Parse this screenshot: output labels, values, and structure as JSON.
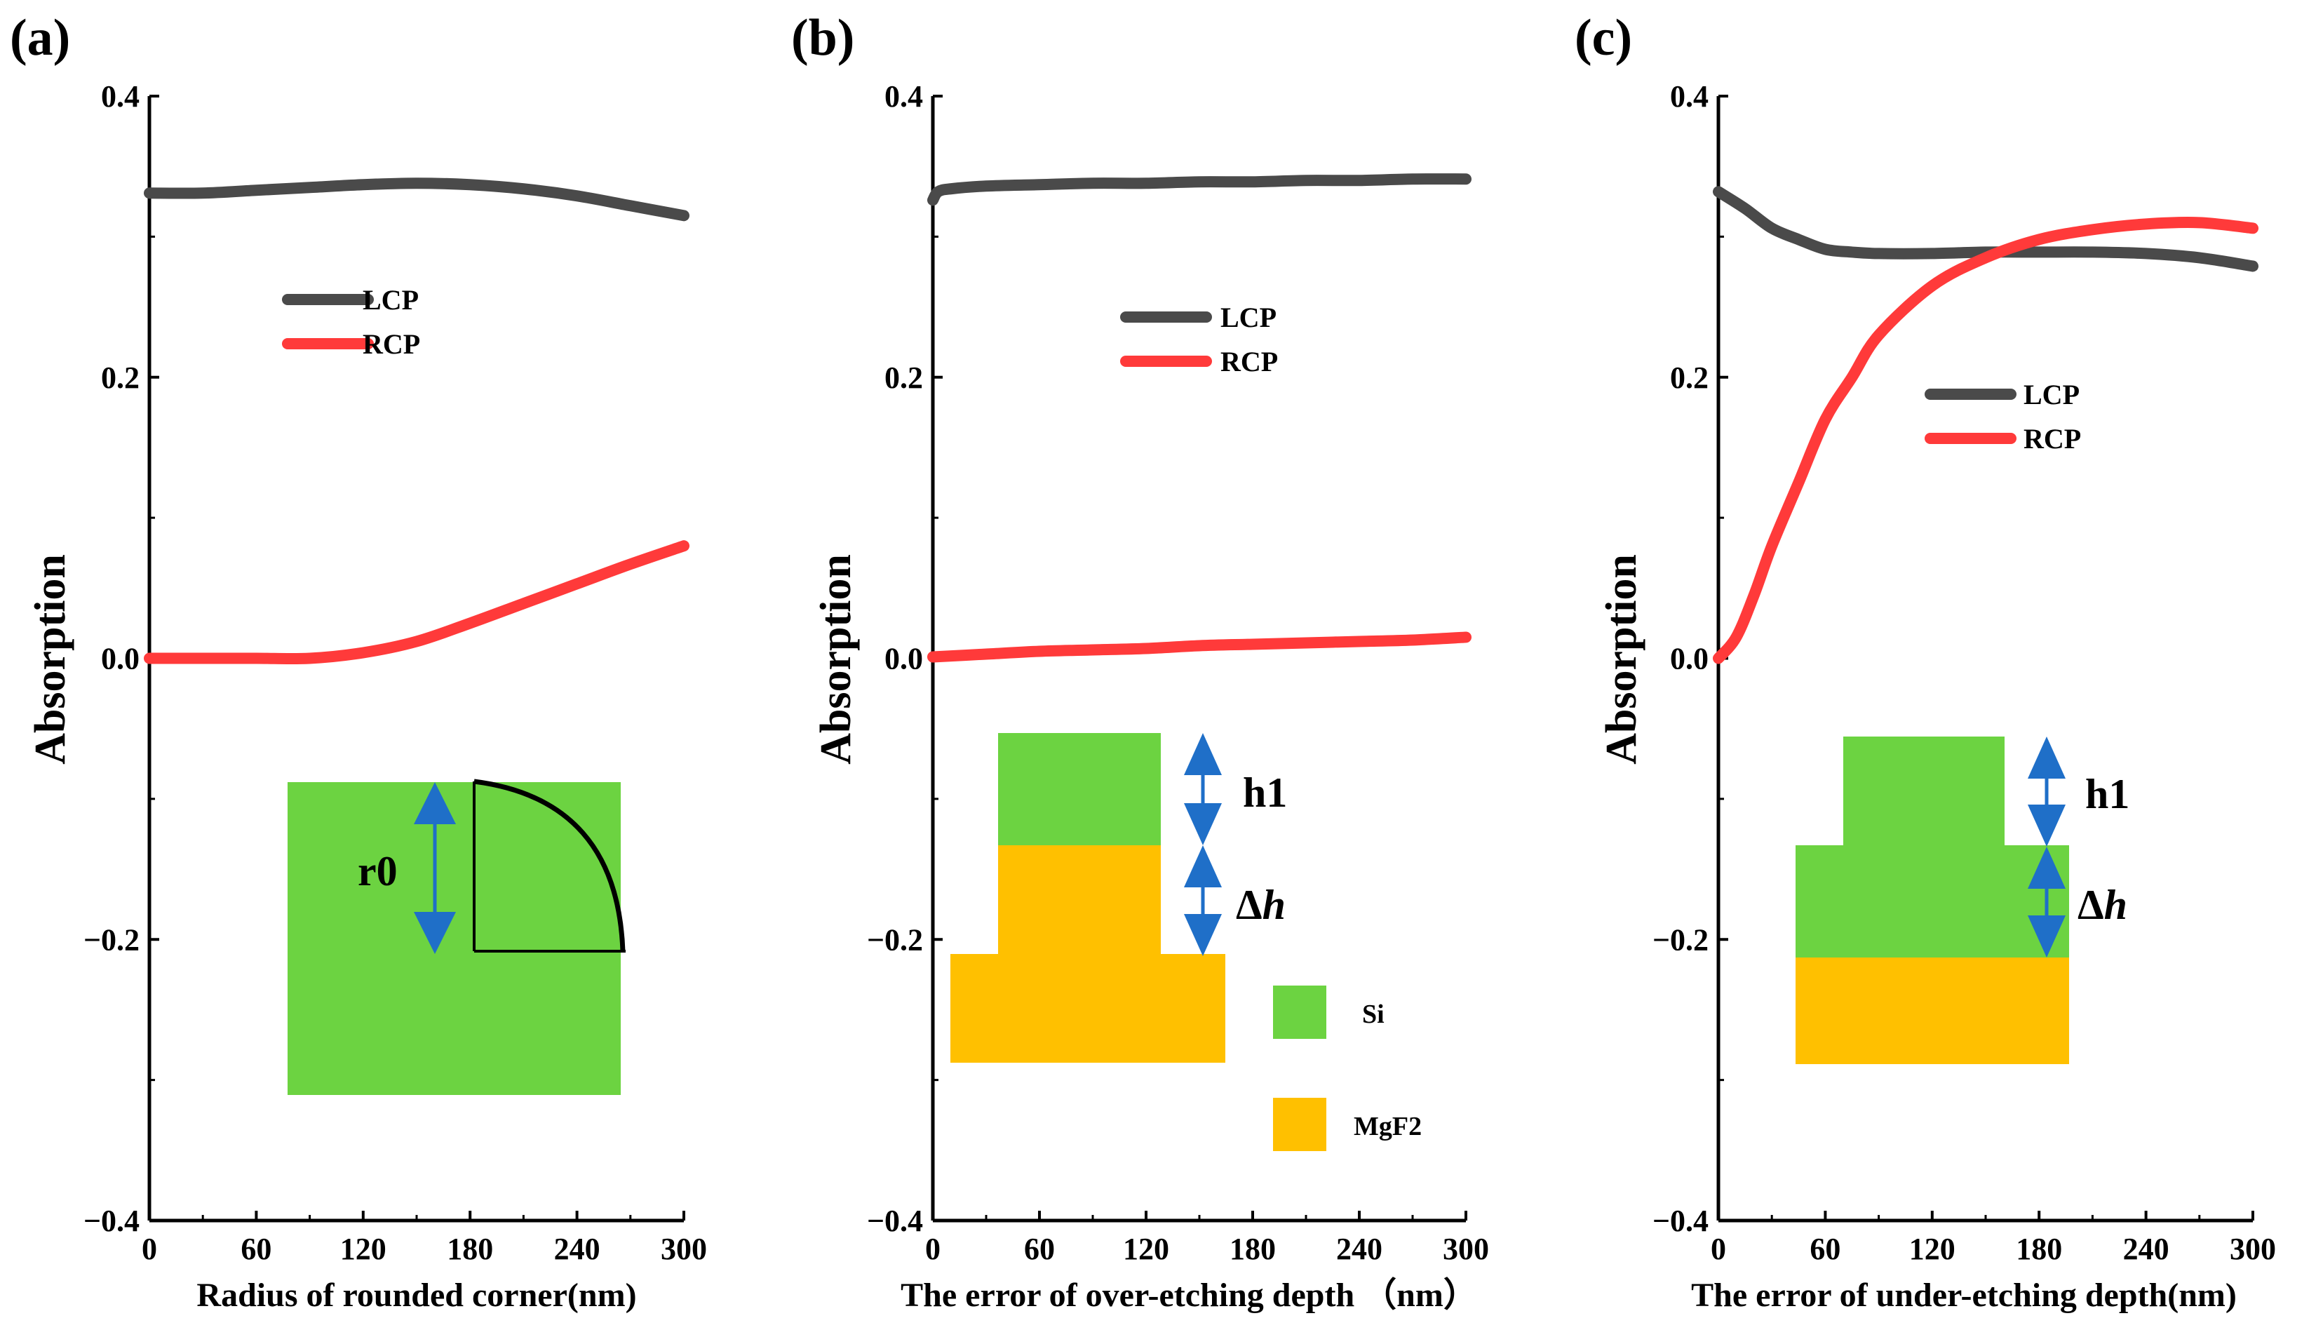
{
  "colors": {
    "lcp": "#4a4a4a",
    "rcp": "#ff3a3a",
    "si": "#6cd341",
    "mgf2": "#ffc000",
    "arrow": "#1f6fc8"
  },
  "chart_data": [
    {
      "type": "line",
      "panel_label": "(a)",
      "xlabel": "Radius of rounded corner(nm)",
      "ylabel": "Absorption",
      "xlim": [
        0,
        300
      ],
      "ylim": [
        -0.4,
        0.4
      ],
      "xticks": [
        "0",
        "60",
        "120",
        "180",
        "240",
        "300"
      ],
      "yticks": [
        "0.4",
        "0.2",
        "0.0",
        "−0.2",
        "−0.4"
      ],
      "legend": {
        "position": "upper-left",
        "labels": [
          "LCP",
          "RCP"
        ]
      },
      "series": [
        {
          "name": "LCP",
          "x": [
            0,
            30,
            60,
            90,
            120,
            150,
            180,
            210,
            240,
            270,
            300
          ],
          "y": [
            0.331,
            0.331,
            0.333,
            0.335,
            0.337,
            0.338,
            0.337,
            0.334,
            0.329,
            0.322,
            0.315
          ]
        },
        {
          "name": "RCP",
          "x": [
            0,
            30,
            60,
            90,
            120,
            150,
            180,
            210,
            240,
            270,
            300
          ],
          "y": [
            0.0,
            0.0,
            0.0,
            0.0,
            0.004,
            0.012,
            0.025,
            0.039,
            0.053,
            0.067,
            0.08
          ]
        }
      ],
      "inset": {
        "labels": [
          "r0"
        ]
      }
    },
    {
      "type": "line",
      "panel_label": "(b)",
      "xlabel": "The error of over-etching depth （nm）",
      "ylabel": "Absorption",
      "xlim": [
        0,
        300
      ],
      "ylim": [
        -0.4,
        0.4
      ],
      "xticks": [
        "0",
        "60",
        "120",
        "180",
        "240",
        "300"
      ],
      "yticks": [
        "0.4",
        "0.2",
        "0.0",
        "−0.2",
        "−0.4"
      ],
      "legend": {
        "position": "upper-center",
        "labels": [
          "LCP",
          "RCP"
        ]
      },
      "series": [
        {
          "name": "LCP",
          "x": [
            0,
            3,
            10,
            30,
            60,
            90,
            120,
            150,
            180,
            210,
            240,
            270,
            300
          ],
          "y": [
            0.326,
            0.332,
            0.334,
            0.336,
            0.337,
            0.338,
            0.338,
            0.339,
            0.339,
            0.34,
            0.34,
            0.341,
            0.341
          ]
        },
        {
          "name": "RCP",
          "x": [
            0,
            30,
            60,
            90,
            120,
            150,
            180,
            210,
            240,
            270,
            300
          ],
          "y": [
            0.001,
            0.003,
            0.005,
            0.006,
            0.007,
            0.009,
            0.01,
            0.011,
            0.012,
            0.013,
            0.015
          ]
        }
      ],
      "inset": {
        "labels": [
          "h1",
          "Δ",
          "h",
          "Si",
          "MgF2"
        ]
      }
    },
    {
      "type": "line",
      "panel_label": "(c)",
      "xlabel": "The error of under-etching depth(nm)",
      "ylabel": "Absorption",
      "xlim": [
        0,
        300
      ],
      "ylim": [
        -0.4,
        0.4
      ],
      "xticks": [
        "0",
        "60",
        "120",
        "180",
        "240",
        "300"
      ],
      "yticks": [
        "0.4",
        "0.2",
        "0.0",
        "−0.2",
        "−0.4"
      ],
      "legend": {
        "position": "center-right",
        "labels": [
          "LCP",
          "RCP"
        ]
      },
      "series": [
        {
          "name": "LCP",
          "x": [
            0,
            15,
            30,
            45,
            60,
            75,
            90,
            120,
            150,
            180,
            210,
            240,
            270,
            300
          ],
          "y": [
            0.332,
            0.32,
            0.306,
            0.298,
            0.291,
            0.289,
            0.288,
            0.288,
            0.289,
            0.289,
            0.289,
            0.288,
            0.285,
            0.279
          ]
        },
        {
          "name": "RCP",
          "x": [
            0,
            10,
            20,
            30,
            45,
            60,
            75,
            90,
            120,
            150,
            180,
            210,
            240,
            270,
            300
          ],
          "y": [
            0.0,
            0.015,
            0.045,
            0.08,
            0.125,
            0.17,
            0.2,
            0.23,
            0.265,
            0.285,
            0.298,
            0.305,
            0.309,
            0.31,
            0.306
          ]
        }
      ],
      "inset": {
        "labels": [
          "h1",
          "Δ",
          "h"
        ]
      }
    }
  ]
}
